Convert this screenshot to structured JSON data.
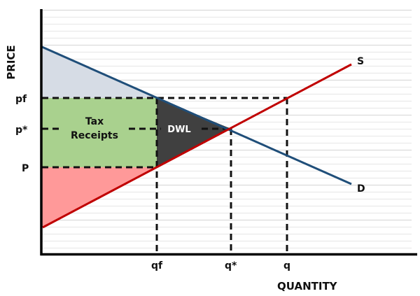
{
  "chart_data": {
    "type": "line",
    "title": "",
    "xlabel": "QUANTITY",
    "ylabel": "PRICE",
    "grid": true,
    "legend": null,
    "x_ticks": [
      "qf",
      "q*",
      "q"
    ],
    "y_ticks": [
      "pf",
      "p*",
      "P"
    ],
    "series": [
      {
        "name": "S",
        "label": "S",
        "color": "#C00000",
        "points": [
          [
            0,
            0.0
          ],
          [
            1,
            1.0
          ]
        ],
        "description": "Upward-sloping supply curve"
      },
      {
        "name": "D",
        "label": "D",
        "color": "#1F4E79",
        "points": [
          [
            0,
            1.0
          ],
          [
            1,
            0.0
          ]
        ],
        "description": "Downward-sloping demand curve"
      }
    ],
    "regions": [
      {
        "name": "Tax Receipts",
        "label": "Tax Receipts",
        "color": "#A9D18E",
        "bounds": "rectangle between P and pf, from 0 to qf"
      },
      {
        "name": "DWL",
        "label": "DWL",
        "color": "#404040",
        "bounds": "triangle between qf and q* bounded by D and S"
      },
      {
        "name": "Consumer Surplus",
        "label": "",
        "color": "#D6DCE5",
        "bounds": "triangle above pf under D"
      },
      {
        "name": "Producer Surplus",
        "label": "",
        "color": "#FF9999",
        "bounds": "triangle below P above S"
      }
    ],
    "annotations": [
      "Tax Receipts",
      "DWL",
      "S",
      "D",
      "pf",
      "p*",
      "P",
      "qf",
      "q*",
      "q"
    ]
  },
  "labels": {
    "ylabel": "PRICE",
    "xlabel": "QUANTITY",
    "pf": "pf",
    "pstar": "p*",
    "P": "P",
    "qf": "qf",
    "qstar": "q*",
    "q": "q",
    "S": "S",
    "D": "D",
    "tax_line1": "Tax",
    "tax_line2": "Receipts",
    "dwl": "DWL"
  },
  "colors": {
    "supply": "#C00000",
    "demand": "#1F4E79",
    "tax_fill": "#A9D18E",
    "dwl_fill": "#404040",
    "cs_fill": "#D6DCE5",
    "ps_fill": "#FF9999",
    "grid": "#E6E6E6",
    "grid_major": "#D4D4D4"
  }
}
